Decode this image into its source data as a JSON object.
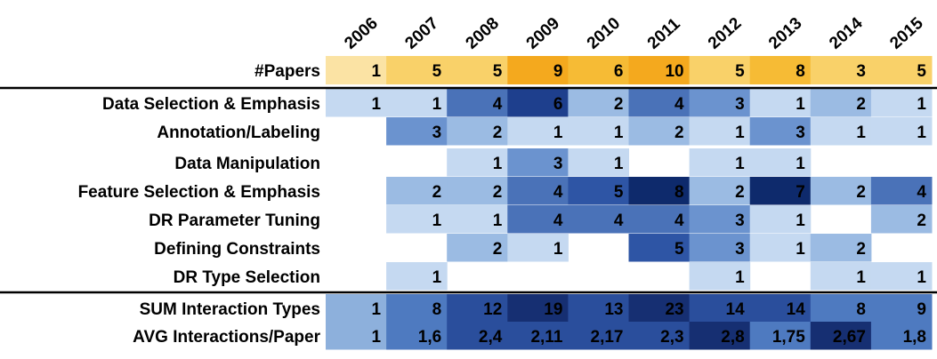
{
  "chart_data": {
    "type": "heatmap",
    "columns": [
      "2006",
      "2007",
      "2008",
      "2009",
      "2010",
      "2011",
      "2012",
      "2013",
      "2014",
      "2015"
    ],
    "papers_row": {
      "label": "#Papers",
      "values": [
        "1",
        "5",
        "5",
        "9",
        "6",
        "10",
        "5",
        "8",
        "3",
        "5"
      ]
    },
    "interaction_rows": [
      {
        "label": "Data Selection & Emphasis",
        "values": [
          "1",
          "1",
          "4",
          "6",
          "2",
          "4",
          "3",
          "1",
          "2",
          "1"
        ]
      },
      {
        "label": "Annotation/Labeling",
        "values": [
          "",
          "3",
          "2",
          "1",
          "1",
          "2",
          "1",
          "3",
          "1",
          "1"
        ]
      },
      {
        "label": "Data Manipulation",
        "values": [
          "",
          "",
          "1",
          "3",
          "1",
          "",
          "1",
          "1",
          "",
          ""
        ]
      },
      {
        "label": "Feature Selection & Emphasis",
        "values": [
          "",
          "2",
          "2",
          "4",
          "5",
          "8",
          "2",
          "7",
          "2",
          "4"
        ]
      },
      {
        "label": "DR Parameter Tuning",
        "values": [
          "",
          "1",
          "1",
          "4",
          "4",
          "4",
          "3",
          "1",
          "",
          "2"
        ]
      },
      {
        "label": "Defining Constraints",
        "values": [
          "",
          "",
          "2",
          "1",
          "",
          "5",
          "3",
          "1",
          "2",
          ""
        ]
      },
      {
        "label": "DR Type Selection",
        "values": [
          "",
          "1",
          "",
          "",
          "",
          "",
          "1",
          "",
          "1",
          "1"
        ]
      }
    ],
    "summary_rows": [
      {
        "label": "SUM Interaction Types",
        "values": [
          "1",
          "8",
          "12",
          "19",
          "13",
          "23",
          "14",
          "14",
          "8",
          "9"
        ]
      },
      {
        "label": "AVG Interactions/Paper",
        "values": [
          "1",
          "1,6",
          "2,4",
          "2,11",
          "2,17",
          "2,3",
          "2,8",
          "1,75",
          "2,67",
          "1,8"
        ]
      }
    ],
    "color_scales": {
      "papers": [
        "#fbe3a4",
        "#f9d169",
        "#f6bb35",
        "#f4a91e"
      ],
      "interactions": [
        "#c5d9f1",
        "#9bbbe3",
        "#6b93cf",
        "#4a72b8",
        "#2e55a5",
        "#1e3f8d",
        "#0e2a6c"
      ],
      "summary": [
        "#8db0dc",
        "#4e7ac0",
        "#2a4e9c",
        "#162f72"
      ]
    }
  }
}
